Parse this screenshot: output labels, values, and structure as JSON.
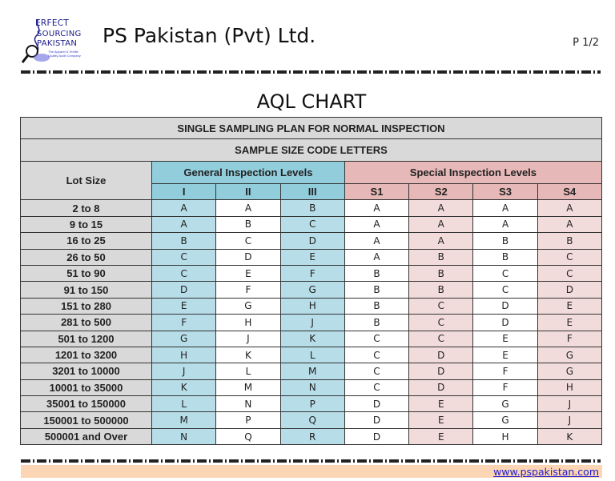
{
  "header": {
    "logo_lines": [
      "ERFECT",
      "SOURCING",
      "PAKISTAN"
    ],
    "logo_tagline": "The Apparel & Textile Quality Audit Company",
    "company": "PS Pakistan (Pvt) Ltd.",
    "page": "P 1/2"
  },
  "title": "AQL CHART",
  "table": {
    "row1": "SINGLE SAMPLING PLAN FOR NORMAL INSPECTION",
    "row2": "SAMPLE SIZE CODE LETTERS",
    "lot_size": "Lot Size",
    "general": "General Inspection  Levels",
    "special": "Special Inspection Levels",
    "levels": [
      "I",
      "II",
      "III",
      "S1",
      "S2",
      "S3",
      "S4"
    ],
    "rows": [
      [
        "2 to 8",
        "A",
        "A",
        "B",
        "A",
        "A",
        "A",
        "A"
      ],
      [
        "9 to 15",
        "A",
        "B",
        "C",
        "A",
        "A",
        "A",
        "A"
      ],
      [
        "16 to 25",
        "B",
        "C",
        "D",
        "A",
        "A",
        "B",
        "B"
      ],
      [
        "26 to 50",
        "C",
        "D",
        "E",
        "A",
        "B",
        "B",
        "C"
      ],
      [
        "51 to 90",
        "C",
        "E",
        "F",
        "B",
        "B",
        "C",
        "C"
      ],
      [
        "91 to 150",
        "D",
        "F",
        "G",
        "B",
        "B",
        "C",
        "D"
      ],
      [
        "151 to 280",
        "E",
        "G",
        "H",
        "B",
        "C",
        "D",
        "E"
      ],
      [
        "281 to 500",
        "F",
        "H",
        "J",
        "B",
        "C",
        "D",
        "E"
      ],
      [
        "501 to 1200",
        "G",
        "J",
        "K",
        "C",
        "C",
        "E",
        "F"
      ],
      [
        "1201 to 3200",
        "H",
        "K",
        "L",
        "C",
        "D",
        "E",
        "G"
      ],
      [
        "3201 to 10000",
        "J",
        "L",
        "M",
        "C",
        "D",
        "F",
        "G"
      ],
      [
        "10001 to 35000",
        "K",
        "M",
        "N",
        "C",
        "D",
        "F",
        "H"
      ],
      [
        "35001 to 150000",
        "L",
        "N",
        "P",
        "D",
        "E",
        "G",
        "J"
      ],
      [
        "150001 to 500000",
        "M",
        "P",
        "Q",
        "D",
        "E",
        "G",
        "J"
      ],
      [
        "500001 and Over",
        "N",
        "Q",
        "R",
        "D",
        "E",
        "H",
        "K"
      ]
    ]
  },
  "footer": {
    "link": "www.pspakistan.com"
  },
  "colors": {
    "general_header": "#92cddc",
    "general_cell": "#b7dde8",
    "special_header": "#e6b8b7",
    "special_cell": "#f2dcdb",
    "gray": "#d9d9d9",
    "footer": "#fcd5b4"
  }
}
